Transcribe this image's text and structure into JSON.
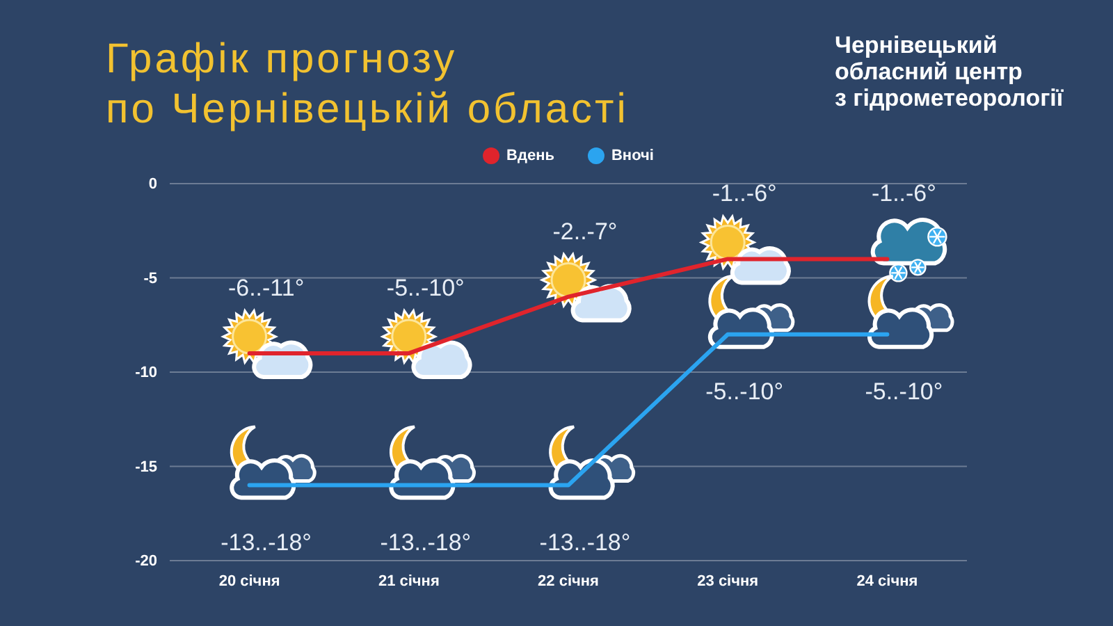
{
  "chart_data": {
    "type": "line",
    "title": "Графік прогнозу\nпо Чернівецькій області",
    "categories": [
      "20 січня",
      "21 січня",
      "22 січня",
      "23 січня",
      "24 січня"
    ],
    "series": [
      {
        "name": "Вдень",
        "color": "#e0242c",
        "values": [
          -9,
          -9,
          -6,
          -4,
          -4
        ],
        "value_labels": [
          "-6..-11°",
          "-5..-10°",
          "-2..-7°",
          "-1..-6°",
          "-1..-6°"
        ]
      },
      {
        "name": "Вночі",
        "color": "#2ba4f0",
        "values": [
          -16,
          -16,
          -16,
          -8,
          -8
        ],
        "value_labels": [
          "-13..-18°",
          "-13..-18°",
          "-13..-18°",
          "-5..-10°",
          "-5..-10°"
        ]
      }
    ],
    "ylim": [
      -20,
      0
    ],
    "yticks": [
      -20,
      -15,
      -10,
      -5,
      0
    ],
    "grid": "y",
    "legend": "top",
    "annotations": [
      "Чернівецький\nобласний центр\nз гідрометеорології"
    ]
  }
}
